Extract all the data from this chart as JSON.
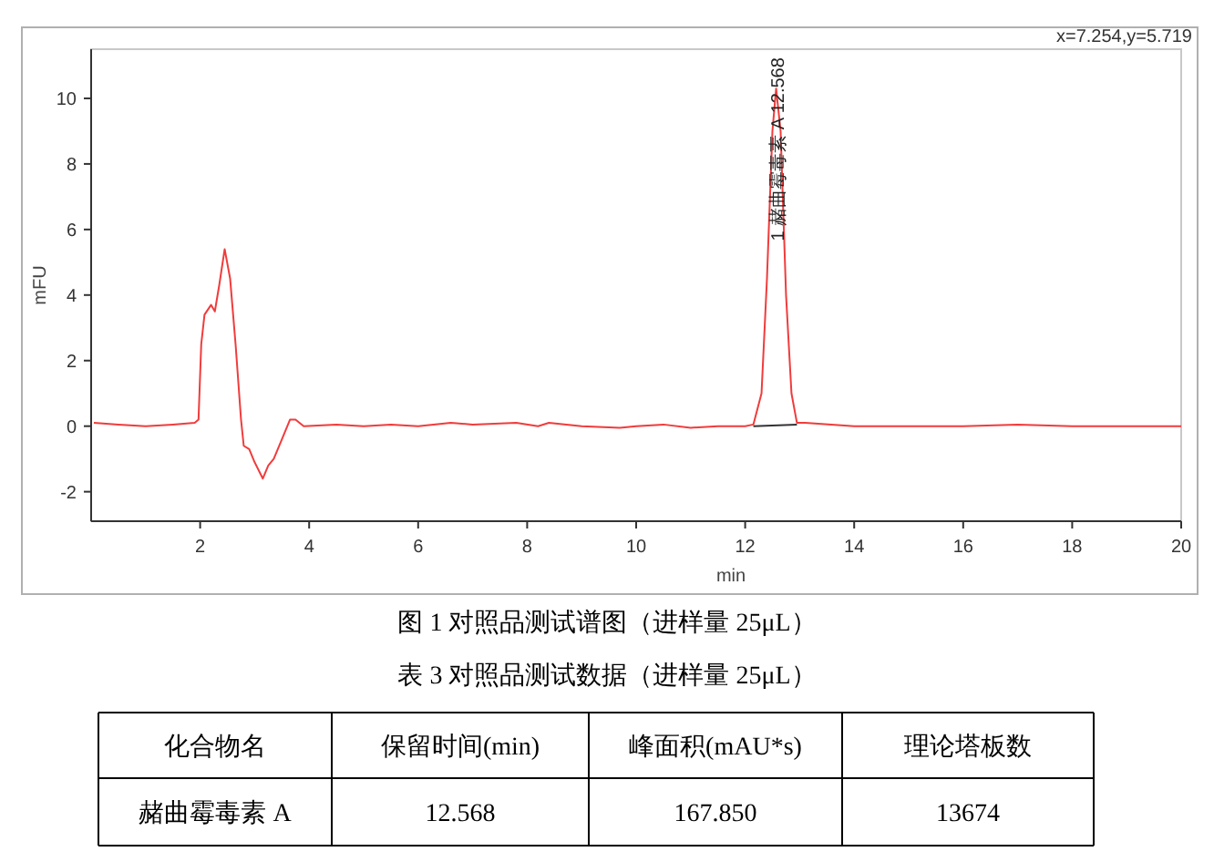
{
  "chart_data": {
    "type": "line",
    "title": "图 1  对照品测试谱图（进样量 25μL）",
    "xlabel": "min",
    "ylabel": "mFU",
    "xlim": [
      0,
      20
    ],
    "ylim": [
      -2.9,
      11.5
    ],
    "xticks": [
      2,
      4,
      6,
      8,
      10,
      12,
      14,
      16,
      18,
      20
    ],
    "yticks": [
      -2,
      0,
      2,
      4,
      6,
      8,
      10
    ],
    "grid": false,
    "series": [
      {
        "color": "#f03c3c",
        "x": [
          0.05,
          0.5,
          1.0,
          1.5,
          1.9,
          1.97,
          2.02,
          2.08,
          2.2,
          2.27,
          2.35,
          2.45,
          2.55,
          2.65,
          2.75,
          2.8,
          2.9,
          3.0,
          3.15,
          3.25,
          3.35,
          3.5,
          3.65,
          3.75,
          3.9,
          4.5,
          5,
          5.5,
          6,
          6.6,
          7,
          7.8,
          8.2,
          8.4,
          9,
          9.7,
          10,
          10.5,
          11,
          11.5,
          12,
          12.15,
          12.3,
          12.4,
          12.5,
          12.568,
          12.65,
          12.75,
          12.85,
          12.95,
          13.1,
          14,
          15,
          16,
          17,
          18,
          19,
          20
        ],
        "values": [
          0.1,
          0.05,
          0.0,
          0.05,
          0.1,
          0.2,
          2.5,
          3.4,
          3.7,
          3.5,
          4.3,
          5.4,
          4.5,
          2.5,
          0.2,
          -0.6,
          -0.7,
          -1.1,
          -1.6,
          -1.2,
          -1.0,
          -0.4,
          0.2,
          0.2,
          0.0,
          0.05,
          0.0,
          0.05,
          0.0,
          0.1,
          0.05,
          0.1,
          0.0,
          0.1,
          0.0,
          -0.05,
          0.0,
          0.05,
          -0.05,
          0.0,
          0.0,
          0.05,
          1.0,
          4.5,
          9.0,
          10.3,
          9.0,
          4.0,
          1.0,
          0.1,
          0.1,
          0.0,
          0.0,
          0.0,
          0.05,
          0.0,
          0.0,
          0.0
        ]
      },
      {
        "color": "#333333",
        "x": [
          12.15,
          12.95
        ],
        "values": [
          0.0,
          0.05
        ]
      }
    ],
    "annotations": [
      "x=7.254,y=5.719",
      {
        "text": "1 赭曲霉毒素 A 12.568",
        "x": 12.568,
        "y": 10.3
      },
      "表 3 对照品测试数据（进样量 25μL）",
      "化合物名",
      "保留时间(min)",
      "峰面积(mAU*s)",
      "理论塔板数",
      "赭曲霉毒素 A",
      "12.568",
      "167.850",
      "13674"
    ]
  }
}
